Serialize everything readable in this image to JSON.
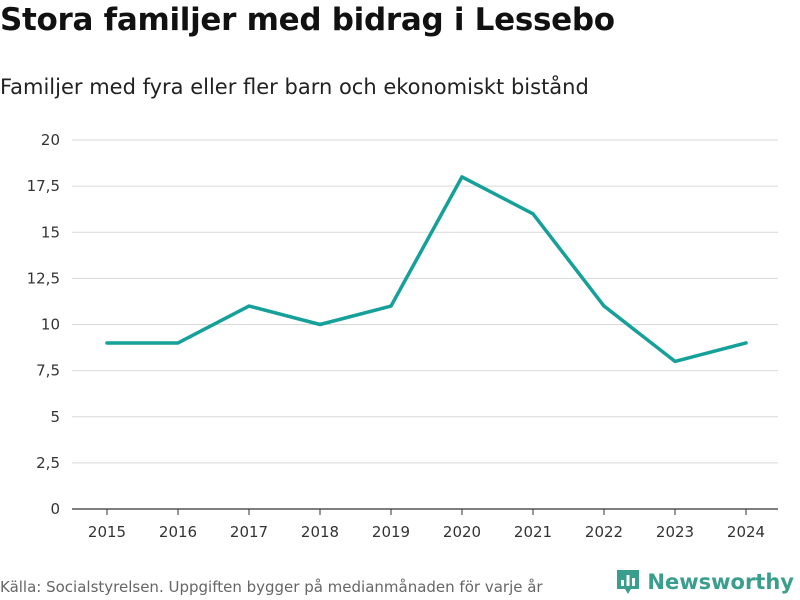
{
  "title": "Stora familjer med bidrag i Lessebo",
  "subtitle": "Familjer med fyra eller fler barn och ekonomiskt bistånd",
  "footer": "Källa: Socialstyrelsen. Uppgiften bygger på medianmånaden för varje år",
  "brand": "Newsworthy",
  "colors": {
    "line": "#15a099",
    "grid": "#d9d9d9",
    "brand": "#3a9e8d"
  },
  "chart_data": {
    "type": "line",
    "title": "Stora familjer med bidrag i Lessebo",
    "subtitle": "Familjer med fyra eller fler barn och ekonomiskt bistånd",
    "xlabel": "",
    "ylabel": "",
    "categories": [
      "2015",
      "2016",
      "2017",
      "2018",
      "2019",
      "2020",
      "2021",
      "2022",
      "2023",
      "2024"
    ],
    "series": [
      {
        "name": "Familjer",
        "values": [
          9,
          9,
          11,
          10,
          11,
          18,
          16,
          11,
          8,
          9
        ]
      }
    ],
    "ylim": [
      0,
      20
    ],
    "yticks": [
      0,
      2.5,
      5,
      7.5,
      10,
      12.5,
      15,
      17.5,
      20
    ],
    "ytick_labels": [
      "0",
      "2,5",
      "5",
      "7,5",
      "10",
      "12,5",
      "15",
      "17,5",
      "20"
    ],
    "grid": true,
    "legend": "none"
  }
}
